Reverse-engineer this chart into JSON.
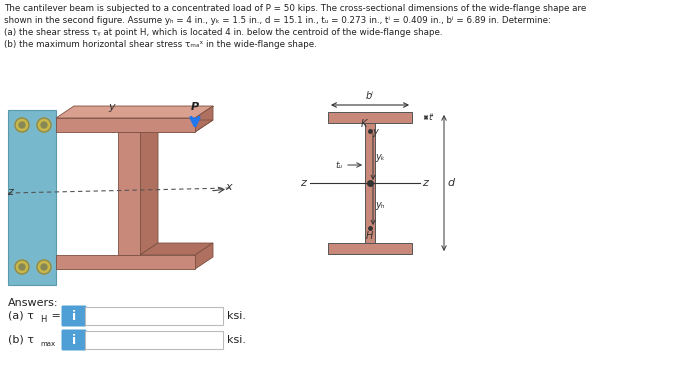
{
  "background_color": "#ffffff",
  "beam_color": "#c8897a",
  "beam_dark": "#b07060",
  "beam_light": "#d9a090",
  "wall_color": "#78b8cc",
  "wall_edge": "#5a9aaa",
  "arrow_color": "#2277ee",
  "input_icon_color": "#4d9fd6",
  "text_color": "#222222",
  "dim_color": "#444444",
  "bolt_color": "#c8b84a",
  "bolt_edge": "#888855",
  "title_lines": [
    "The cantilever beam is subjected to a concentrated load of P = 50 kips. The cross-sectional dimensions of the wide-flange shape are",
    "shown in the second figure. Assume yₕ = 4 in., yₖ = 1.5 in., d = 15.1 in., tᵤ = 0.273 in., tⁱ = 0.409 in., bⁱ = 6.89 in. Determine:",
    "(a) the shear stress τᵧ at point H, which is located 4 in. below the centroid of the wide-flange shape.",
    "(b) the maximum horizontal shear stress τₘₐˣ in the wide-flange shape."
  ],
  "ksi_label": "ksi.",
  "answers_label": "Answers:"
}
